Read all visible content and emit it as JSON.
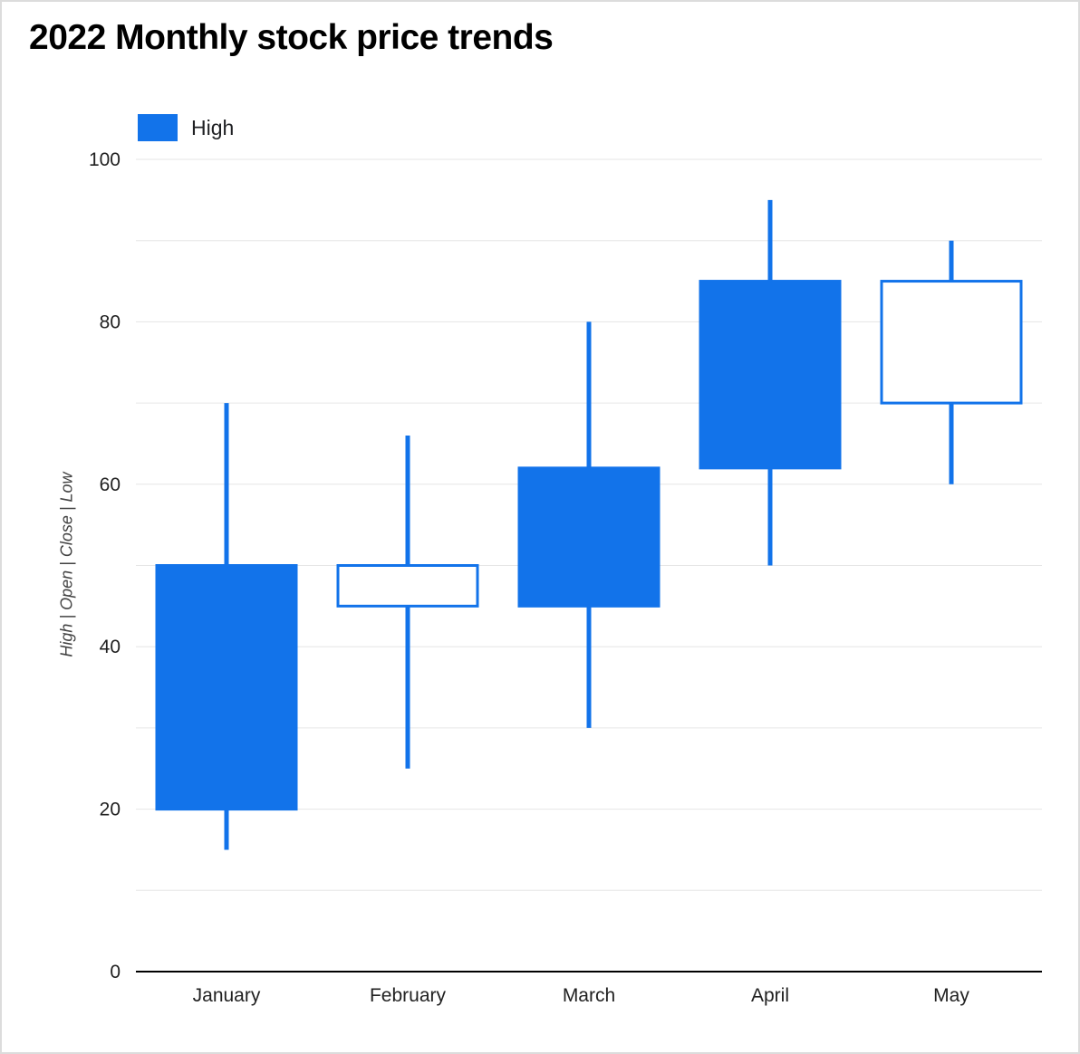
{
  "title": "2022 Monthly stock price trends",
  "legend": {
    "label": "High"
  },
  "axis": {
    "y_label": "High | Open | Close | Low"
  },
  "chart_data": {
    "type": "candlestick",
    "title": "2022 Monthly stock price trends",
    "categories": [
      "January",
      "February",
      "March",
      "April",
      "May"
    ],
    "series": [
      {
        "name": "High",
        "points": [
          {
            "low": 15,
            "open": 50,
            "close": 20,
            "high": 70,
            "direction": "falling"
          },
          {
            "low": 25,
            "open": 45,
            "close": 50,
            "high": 66,
            "direction": "rising"
          },
          {
            "low": 30,
            "open": 62,
            "close": 45,
            "high": 80,
            "direction": "falling"
          },
          {
            "low": 50,
            "open": 85,
            "close": 62,
            "high": 95,
            "direction": "falling"
          },
          {
            "low": 60,
            "open": 70,
            "close": 85,
            "high": 90,
            "direction": "rising"
          }
        ]
      }
    ],
    "xlabel": "",
    "ylabel": "High | Open | Close | Low",
    "ylim": [
      0,
      100
    ],
    "y_ticks": [
      0,
      20,
      40,
      60,
      80,
      100
    ],
    "grid_interval": 10,
    "grid": true,
    "legend_position": "top-left",
    "colors": {
      "candle": "#1273ea",
      "rising_fill": "#ffffff",
      "grid": "#e6e6e6",
      "axis": "#000000",
      "title": "#000000",
      "tick_text": "#212121"
    }
  }
}
